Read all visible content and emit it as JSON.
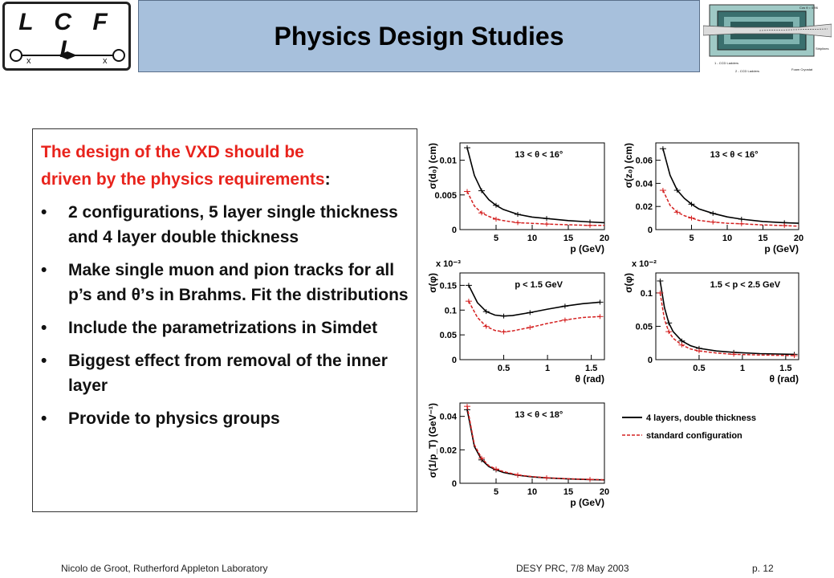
{
  "logo": {
    "text": "L C F I"
  },
  "title": "Physics Design Studies",
  "detector_labels": {
    "cos_theta": "Cos θ = 0.96",
    "striplines": "Striplines",
    "ccd1": "1 - CCD Ladders",
    "ccd2": "2 - CCD Ladders",
    "foam": "Foam Cryostat"
  },
  "intro": {
    "line1": "The design of the VXD should be",
    "line2": "driven by the physics requirements",
    "colon": ":"
  },
  "bullets": [
    "2 configurations, 5 layer single thickness and 4 layer double thickness",
    "Make single muon and pion tracks for all p’s and θ’s in Brahms. Fit the distributions",
    "Include the parametrizations in Simdet",
    "Biggest effect from removal of the inner layer",
    "Provide to physics groups"
  ],
  "bullet_symbol": "•",
  "footer": {
    "left": "Nicolo de Groot, Rutherford Appleton Laboratory",
    "center": "DESY PRC, 7/8 May 2003",
    "right": "p. 12"
  },
  "colors": {
    "title_bg": "#a7c0dc",
    "accent_red": "#e8231c",
    "curve_black": "#000000",
    "curve_red": "#d42020"
  },
  "legend": [
    "4 layers, double thickness",
    "standard configuration"
  ],
  "chart_data": [
    {
      "type": "line",
      "id": "d0",
      "ylabel": "σ(d₀) (cm)",
      "xlabel": "p (GeV)",
      "cut": "13 < θ < 16°",
      "xlim": [
        0,
        20
      ],
      "ylim": [
        0,
        0.0125
      ],
      "yticks": [
        0,
        0.005,
        0.01
      ],
      "ytick_labels": [
        "0",
        "0.005",
        "0.01"
      ],
      "xticks": [
        5,
        10,
        15,
        20
      ],
      "xtick_labels": [
        "5",
        "10",
        "15",
        "20"
      ],
      "exponent": "",
      "series": [
        {
          "style": "black",
          "x": [
            1,
            2,
            3,
            4,
            5,
            6,
            8,
            10,
            12,
            15,
            18,
            20
          ],
          "y": [
            0.0118,
            0.0078,
            0.0056,
            0.0043,
            0.0035,
            0.0029,
            0.0022,
            0.0018,
            0.0016,
            0.0013,
            0.0011,
            0.001
          ]
        },
        {
          "style": "red",
          "x": [
            1,
            2,
            3,
            4,
            5,
            6,
            8,
            10,
            12,
            15,
            18,
            20
          ],
          "y": [
            0.0055,
            0.0034,
            0.0024,
            0.0019,
            0.0015,
            0.0013,
            0.001,
            0.0009,
            0.0008,
            0.0007,
            0.0006,
            0.0006
          ]
        }
      ]
    },
    {
      "type": "line",
      "id": "z0",
      "ylabel": "σ(z₀) (cm)",
      "xlabel": "p (GeV)",
      "cut": "13 < θ < 16°",
      "xlim": [
        0,
        20
      ],
      "ylim": [
        0,
        0.075
      ],
      "yticks": [
        0,
        0.02,
        0.04,
        0.06
      ],
      "ytick_labels": [
        "0",
        "0.02",
        "0.04",
        "0.06"
      ],
      "xticks": [
        5,
        10,
        15,
        20
      ],
      "xtick_labels": [
        "5",
        "10",
        "15",
        "20"
      ],
      "exponent": "",
      "series": [
        {
          "style": "black",
          "x": [
            1,
            2,
            3,
            4,
            5,
            6,
            8,
            10,
            12,
            15,
            18,
            20
          ],
          "y": [
            0.07,
            0.047,
            0.034,
            0.027,
            0.022,
            0.018,
            0.014,
            0.011,
            0.009,
            0.007,
            0.006,
            0.0055
          ]
        },
        {
          "style": "red",
          "x": [
            1,
            2,
            3,
            4,
            5,
            6,
            8,
            10,
            12,
            15,
            18,
            20
          ],
          "y": [
            0.034,
            0.021,
            0.015,
            0.012,
            0.01,
            0.008,
            0.0065,
            0.0055,
            0.005,
            0.004,
            0.0035,
            0.003
          ]
        }
      ]
    },
    {
      "type": "line",
      "id": "phi1",
      "ylabel": "σ(φ)",
      "xlabel": "θ (rad)",
      "cut": "p < 1.5 GeV",
      "xlim": [
        0,
        1.65
      ],
      "ylim": [
        0,
        0.175
      ],
      "yticks": [
        0,
        0.05,
        0.1,
        0.15
      ],
      "ytick_labels": [
        "0",
        "0.05",
        "0.1",
        "0.15"
      ],
      "xticks": [
        0.5,
        1,
        1.5
      ],
      "xtick_labels": [
        "0.5",
        "1",
        "1.5"
      ],
      "exponent": "x 10⁻³",
      "series": [
        {
          "style": "black",
          "x": [
            0.1,
            0.2,
            0.3,
            0.4,
            0.5,
            0.6,
            0.8,
            1.0,
            1.2,
            1.4,
            1.6
          ],
          "y": [
            0.15,
            0.115,
            0.097,
            0.09,
            0.088,
            0.089,
            0.095,
            0.102,
            0.108,
            0.113,
            0.116
          ]
        },
        {
          "style": "red",
          "x": [
            0.1,
            0.2,
            0.3,
            0.4,
            0.5,
            0.6,
            0.8,
            1.0,
            1.2,
            1.4,
            1.6
          ],
          "y": [
            0.118,
            0.085,
            0.067,
            0.059,
            0.056,
            0.058,
            0.065,
            0.073,
            0.08,
            0.085,
            0.087
          ]
        }
      ]
    },
    {
      "type": "line",
      "id": "phi2",
      "ylabel": "σ(φ)",
      "xlabel": "θ (rad)",
      "cut": "1.5 < p < 2.5 GeV",
      "xlim": [
        0,
        1.65
      ],
      "ylim": [
        0,
        0.13
      ],
      "yticks": [
        0,
        0.05,
        0.1
      ],
      "ytick_labels": [
        "0",
        "0.05",
        "0.1"
      ],
      "xticks": [
        0.5,
        1,
        1.5
      ],
      "xtick_labels": [
        "0.5",
        "1",
        "1.5"
      ],
      "exponent": "x 10⁻²",
      "series": [
        {
          "style": "black",
          "x": [
            0.05,
            0.1,
            0.15,
            0.2,
            0.3,
            0.4,
            0.5,
            0.7,
            0.9,
            1.2,
            1.6
          ],
          "y": [
            0.118,
            0.078,
            0.055,
            0.042,
            0.028,
            0.021,
            0.017,
            0.013,
            0.011,
            0.009,
            0.008
          ]
        },
        {
          "style": "red",
          "x": [
            0.05,
            0.1,
            0.15,
            0.2,
            0.3,
            0.4,
            0.5,
            0.7,
            0.9,
            1.2,
            1.6
          ],
          "y": [
            0.1,
            0.06,
            0.042,
            0.032,
            0.022,
            0.016,
            0.013,
            0.01,
            0.008,
            0.007,
            0.006
          ]
        }
      ]
    },
    {
      "type": "line",
      "id": "invpt",
      "ylabel": "σ(1/p_T) (GeV⁻¹)",
      "xlabel": "p (GeV)",
      "cut": "13 < θ < 18°",
      "xlim": [
        0,
        20
      ],
      "ylim": [
        0,
        0.048
      ],
      "yticks": [
        0,
        0.02,
        0.04
      ],
      "ytick_labels": [
        "0",
        "0.02",
        "0.04"
      ],
      "xticks": [
        5,
        10,
        15,
        20
      ],
      "xtick_labels": [
        "5",
        "10",
        "15",
        "20"
      ],
      "exponent": "",
      "series": [
        {
          "style": "black",
          "x": [
            1,
            2,
            3,
            4,
            5,
            6,
            8,
            10,
            12,
            15,
            18,
            20
          ],
          "y": [
            0.044,
            0.022,
            0.014,
            0.01,
            0.008,
            0.0065,
            0.0048,
            0.0038,
            0.0032,
            0.0026,
            0.0022,
            0.002
          ]
        },
        {
          "style": "red",
          "x": [
            1,
            2,
            3,
            4,
            5,
            6,
            8,
            10,
            12,
            15,
            18,
            20
          ],
          "y": [
            0.046,
            0.023,
            0.015,
            0.0105,
            0.0085,
            0.007,
            0.005,
            0.004,
            0.0033,
            0.0027,
            0.0023,
            0.0021
          ]
        }
      ]
    }
  ]
}
